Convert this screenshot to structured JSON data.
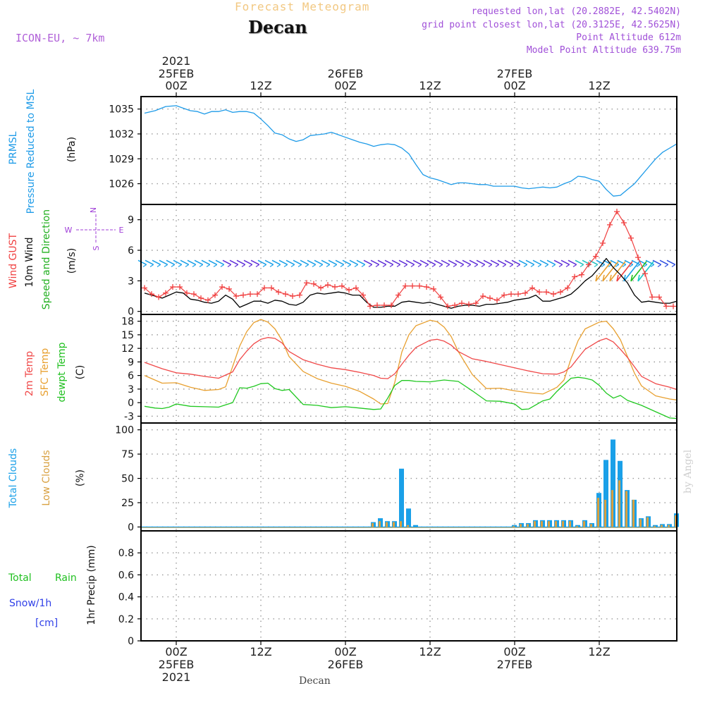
{
  "header": {
    "product": "Forecast Meteogram",
    "location": "Decan",
    "model": "ICON-EU, ~ 7km",
    "requested": "requested lon,lat (20.2882E, 42.5402N)",
    "grid_point": "grid point closest lon,lat (20.3125E, 42.5625N)",
    "point_altitude": "Point Altitude 612m",
    "model_altitude": "Model Point Altitude 639.75m",
    "footer_location": "Decan",
    "credit": "by Angel"
  },
  "time_axis": {
    "year": "2021",
    "ticks": [
      {
        "hour": 0,
        "label": "00Z",
        "date": "25FEB",
        "year": "2021"
      },
      {
        "hour": 12,
        "label": "12Z"
      },
      {
        "hour": 24,
        "label": "00Z",
        "date": "26FEB"
      },
      {
        "hour": 36,
        "label": "12Z"
      },
      {
        "hour": 48,
        "label": "00Z",
        "date": "27FEB"
      },
      {
        "hour": 60,
        "label": "12Z"
      }
    ],
    "range_hours": [
      -5,
      71
    ]
  },
  "colors": {
    "pressure": "#1E9BE8",
    "gust": "#F04040",
    "wind": "#000000",
    "barb_green": "#22C020",
    "t2m": "#F04848",
    "sfc": "#E8A030",
    "dewpt": "#20C820",
    "total_clouds": "#1AA0E8",
    "low_clouds": "#D8A040",
    "rain": "#20C820",
    "snow": "#3040E8",
    "purple": "#A040D8",
    "grid": "#9a9a9a"
  },
  "panel_labels": {
    "p1": {
      "a": "PRMSL",
      "b": "Pressure Reduced to MSL",
      "unit": "(hPa)"
    },
    "p2": {
      "a": "Wind GUST",
      "b": "10m Wind",
      "c": "Speed and Direction",
      "unit": "(m/s)",
      "compass_n": "N",
      "compass_s": "S",
      "compass_w": "W",
      "compass_e": "E"
    },
    "p3": {
      "a": "2m Temp",
      "b": "SFC Temp",
      "c": "dewpt Temp",
      "unit": "(C)"
    },
    "p4": {
      "a": "Total Clouds",
      "b": "Low Clouds",
      "unit": "(%)"
    },
    "p5": {
      "a": "Total",
      "b": "Rain",
      "c": "Snow/1h",
      "d": "[cm]",
      "unit": "1hr Precip (mm)"
    }
  },
  "chart_data": [
    {
      "type": "line",
      "title": "PRMSL Pressure Reduced to MSL",
      "ylabel": "(hPa)",
      "ylim": [
        1023.5,
        1036.5
      ],
      "yticks": [
        1026,
        1029,
        1032,
        1035
      ],
      "series": [
        {
          "name": "PRMSL",
          "x": [
            -4.5,
            -3,
            -1.5,
            0,
            1,
            2,
            3,
            4,
            5,
            6,
            7,
            8,
            9,
            10,
            11,
            12,
            13,
            14,
            15,
            16,
            17,
            18,
            19,
            20,
            21,
            22,
            23,
            24,
            25,
            26,
            27,
            28,
            29,
            30,
            31,
            32,
            33,
            34,
            35,
            36,
            37,
            38,
            39,
            40,
            41,
            42,
            43,
            44,
            45,
            46,
            47,
            48,
            49,
            50,
            51,
            52,
            53,
            54,
            55,
            56,
            57,
            58,
            59,
            60,
            61,
            62,
            63,
            64,
            65,
            66,
            67,
            68,
            69,
            70,
            71
          ],
          "values": [
            1034.5,
            1034.8,
            1035.3,
            1035.4,
            1035.1,
            1034.8,
            1034.7,
            1034.4,
            1034.7,
            1034.7,
            1034.9,
            1034.6,
            1034.7,
            1034.7,
            1034.5,
            1033.8,
            1033.0,
            1032.1,
            1031.9,
            1031.4,
            1031.1,
            1031.3,
            1031.8,
            1031.9,
            1032.0,
            1032.2,
            1031.9,
            1031.6,
            1031.3,
            1031.0,
            1030.8,
            1030.5,
            1030.7,
            1030.8,
            1030.7,
            1030.3,
            1029.6,
            1028.3,
            1027.1,
            1026.7,
            1026.5,
            1026.2,
            1025.9,
            1026.1,
            1026.1,
            1026.0,
            1025.9,
            1025.9,
            1025.7,
            1025.7,
            1025.7,
            1025.7,
            1025.5,
            1025.4,
            1025.5,
            1025.6,
            1025.5,
            1025.6,
            1026.0,
            1026.3,
            1026.9,
            1026.8,
            1026.5,
            1026.3,
            1025.3,
            1024.5,
            1024.6,
            1025.3,
            1026.0,
            1027.0,
            1028.0,
            1029.0,
            1029.8,
            1030.3,
            1030.8
          ]
        }
      ]
    },
    {
      "type": "line",
      "title": "Wind GUST / 10m Wind Speed and Direction",
      "ylabel": "(m/s)",
      "ylim": [
        -0.3,
        10.5
      ],
      "yticks": [
        0,
        3,
        6,
        9
      ],
      "series": [
        {
          "name": "Wind GUST",
          "x": [
            -4.5,
            -3.5,
            -2.5,
            -1.5,
            -0.5,
            0.5,
            1.5,
            2.5,
            3.5,
            4.5,
            5.5,
            6.5,
            7.5,
            8.5,
            9.5,
            10.5,
            11.5,
            12.5,
            13.5,
            14.5,
            15.5,
            16.5,
            17.5,
            18.5,
            19.5,
            20.5,
            21.5,
            22.5,
            23.5,
            24.5,
            25.5,
            26.5,
            27.5,
            28.5,
            29.5,
            30.5,
            31.5,
            32.5,
            33.5,
            34.5,
            35.5,
            36.5,
            37.5,
            38.5,
            39.5,
            40.5,
            41.5,
            42.5,
            43.5,
            44.5,
            45.5,
            46.5,
            47.5,
            48.5,
            49.5,
            50.5,
            51.5,
            52.5,
            53.5,
            54.5,
            55.5,
            56.5,
            57.5,
            58.5,
            59.5,
            60.5,
            61.5,
            62.5,
            63.5,
            64.5,
            65.5,
            66.5,
            67.5,
            68.5,
            69.5,
            70.5
          ],
          "values": [
            2.3,
            1.7,
            1.4,
            1.8,
            2.4,
            2.4,
            1.8,
            1.7,
            1.3,
            1.1,
            1.6,
            2.4,
            2.2,
            1.5,
            1.6,
            1.7,
            1.7,
            2.3,
            2.3,
            1.9,
            1.7,
            1.5,
            1.6,
            2.8,
            2.7,
            2.3,
            2.6,
            2.4,
            2.5,
            2.1,
            2.3,
            1.6,
            0.5,
            0.6,
            0.6,
            0.6,
            1.6,
            2.5,
            2.5,
            2.5,
            2.4,
            2.2,
            1.4,
            0.5,
            0.6,
            0.8,
            0.7,
            0.8,
            1.5,
            1.3,
            1.1,
            1.6,
            1.7,
            1.7,
            1.8,
            2.3,
            1.9,
            1.9,
            1.7,
            1.9,
            2.3,
            3.4,
            3.6,
            4.6,
            5.4,
            6.7,
            8.5,
            9.8,
            8.7,
            7.2,
            5.3,
            3.7,
            1.4,
            1.4,
            0.5,
            0.5
          ]
        },
        {
          "name": "10m Wind",
          "x": [
            -4.5,
            -3,
            -2,
            -1,
            0,
            1,
            2,
            3,
            4,
            5,
            6,
            7,
            8,
            9,
            10,
            11,
            12,
            13,
            14,
            15,
            16,
            17,
            18,
            19,
            20,
            21,
            22,
            23,
            24,
            25,
            26,
            27,
            28,
            29,
            30,
            31,
            32,
            33,
            34,
            35,
            36,
            37,
            38,
            39,
            40,
            41,
            42,
            43,
            44,
            45,
            46,
            47,
            48,
            49,
            50,
            51,
            52,
            53,
            54,
            55,
            56,
            57,
            58,
            59,
            60,
            61,
            62,
            63,
            64,
            65,
            66,
            67,
            68,
            69,
            70,
            71
          ],
          "values": [
            1.8,
            1.5,
            1.3,
            1.6,
            1.9,
            1.8,
            1.2,
            1.1,
            0.9,
            0.8,
            1.0,
            1.6,
            1.2,
            0.4,
            0.7,
            1.0,
            1.0,
            0.8,
            1.1,
            1.0,
            0.7,
            0.6,
            0.9,
            1.6,
            1.8,
            1.7,
            1.8,
            1.9,
            1.8,
            1.6,
            1.6,
            0.9,
            0.4,
            0.4,
            0.5,
            0.5,
            0.9,
            1.0,
            0.9,
            0.8,
            0.9,
            0.7,
            0.5,
            0.3,
            0.5,
            0.6,
            0.6,
            0.5,
            0.7,
            0.7,
            0.8,
            0.9,
            1.1,
            1.2,
            1.3,
            1.6,
            1.0,
            1.0,
            1.2,
            1.4,
            1.7,
            2.3,
            3.0,
            3.5,
            4.3,
            5.2,
            4.3,
            3.6,
            2.8,
            1.6,
            0.9,
            1.0,
            0.9,
            0.8,
            0.8,
            1.0
          ]
        }
      ],
      "barb_level": 4.8
    },
    {
      "type": "line",
      "title": "2m Temp / SFC Temp / dewpt Temp",
      "ylabel": "(C)",
      "ylim": [
        -4.5,
        19.5
      ],
      "yticks": [
        -3,
        0,
        3,
        6,
        9,
        12,
        15,
        18
      ],
      "series": [
        {
          "name": "2m Temp",
          "x": [
            -4.5,
            -2,
            0,
            2,
            4,
            6,
            8,
            9,
            10,
            11,
            12,
            13,
            14,
            15,
            16,
            18,
            20,
            22,
            24,
            26,
            28,
            29,
            30,
            31,
            32,
            33,
            34,
            36,
            37,
            38,
            39,
            40,
            42,
            44,
            46,
            48,
            50,
            52,
            54,
            55,
            56,
            57,
            58,
            60,
            61,
            62,
            63,
            64,
            65,
            66,
            68,
            70,
            71
          ],
          "values": [
            8.9,
            7.5,
            6.6,
            6.3,
            5.8,
            5.4,
            6.8,
            9.5,
            11.4,
            13.0,
            14.0,
            14.4,
            14.2,
            13.2,
            11.3,
            9.5,
            8.5,
            7.7,
            7.3,
            6.7,
            6.0,
            5.4,
            5.3,
            6.4,
            8.5,
            10.5,
            12.2,
            13.8,
            14.0,
            13.6,
            12.7,
            11.3,
            9.7,
            9.1,
            8.4,
            7.7,
            7.0,
            6.4,
            6.3,
            6.8,
            7.9,
            9.9,
            11.8,
            13.7,
            14.2,
            13.4,
            11.8,
            10.0,
            7.9,
            5.8,
            4.2,
            3.4,
            2.9
          ]
        },
        {
          "name": "SFC Temp",
          "x": [
            -4.5,
            -2,
            0,
            2,
            4,
            6,
            7,
            8,
            9,
            10,
            11,
            12,
            13,
            14,
            15,
            16,
            18,
            20,
            22,
            24,
            26,
            28,
            29,
            30,
            31,
            32,
            33,
            34,
            36,
            37,
            38,
            39,
            40,
            42,
            44,
            46,
            48,
            50,
            52,
            54,
            55,
            56,
            57,
            58,
            60,
            61,
            62,
            63,
            64,
            65,
            66,
            68,
            70,
            71
          ],
          "values": [
            6.0,
            4.3,
            4.4,
            3.4,
            2.7,
            2.9,
            3.5,
            8.0,
            12.5,
            15.7,
            17.7,
            18.4,
            17.8,
            16.3,
            13.8,
            10.2,
            6.9,
            5.3,
            4.3,
            3.6,
            2.5,
            0.8,
            -0.3,
            -0.2,
            4.5,
            11.2,
            15.0,
            17.0,
            18.2,
            17.9,
            16.7,
            14.6,
            11.3,
            6.2,
            3.1,
            3.2,
            2.6,
            2.2,
            1.9,
            3.4,
            5.0,
            9.7,
            13.7,
            16.3,
            17.8,
            18.0,
            16.3,
            13.9,
            10.2,
            6.5,
            3.7,
            1.5,
            0.8,
            0.6
          ]
        },
        {
          "name": "dewpt Temp",
          "x": [
            -4.5,
            -3,
            -2,
            -1,
            0,
            2,
            4,
            6,
            7,
            8,
            9,
            10,
            11,
            12,
            13,
            14,
            15,
            16,
            18,
            20,
            22,
            24,
            26,
            28,
            29,
            30,
            31,
            32,
            33,
            34,
            36,
            38,
            40,
            42,
            44,
            46,
            48,
            49,
            50,
            51,
            52,
            53,
            54,
            55,
            56,
            57,
            58,
            59,
            60,
            61,
            62,
            63,
            64,
            66,
            68,
            70,
            71
          ],
          "values": [
            -0.8,
            -1.2,
            -1.3,
            -1.0,
            -0.3,
            -0.8,
            -0.9,
            -1.0,
            -0.5,
            0.0,
            3.3,
            3.2,
            3.6,
            4.2,
            4.3,
            3.1,
            2.7,
            2.9,
            -0.4,
            -0.6,
            -1.1,
            -0.9,
            -1.2,
            -1.5,
            -1.4,
            1.0,
            3.8,
            4.9,
            4.9,
            4.7,
            4.6,
            5.0,
            4.7,
            2.6,
            0.4,
            0.3,
            -0.3,
            -1.5,
            -1.4,
            -0.5,
            0.4,
            0.8,
            2.5,
            4.0,
            5.4,
            5.6,
            5.4,
            5.0,
            3.8,
            2.1,
            1.0,
            1.6,
            0.5,
            -0.6,
            -2.0,
            -3.4,
            -3.5
          ]
        }
      ]
    },
    {
      "type": "bar",
      "title": "Total Clouds / Low Clouds",
      "ylabel": "(%)",
      "ylim": [
        -4,
        107
      ],
      "yticks": [
        0,
        25,
        50,
        75,
        100
      ],
      "series": [
        {
          "name": "Total Clouds",
          "x": [
            28,
            29,
            30,
            31,
            32,
            33,
            34,
            35,
            48,
            49,
            50,
            51,
            52,
            53,
            54,
            55,
            56,
            57,
            58,
            59,
            60,
            61,
            62,
            63,
            64,
            65,
            66,
            67,
            68,
            69,
            70,
            71
          ],
          "values": [
            5,
            9,
            6,
            6,
            60,
            19,
            2,
            0,
            2,
            4,
            4,
            7,
            7,
            7,
            7,
            7,
            7,
            2,
            7,
            4,
            35,
            69,
            90,
            68,
            38,
            28,
            9,
            11,
            2,
            3,
            3,
            14
          ]
        },
        {
          "name": "Low Clouds",
          "x": [
            28,
            29,
            30,
            31,
            32,
            33,
            34,
            35,
            48,
            49,
            50,
            51,
            52,
            53,
            54,
            55,
            56,
            57,
            58,
            59,
            60,
            61,
            62,
            63,
            64,
            65,
            66,
            67,
            68,
            69,
            70,
            71
          ],
          "values": [
            4,
            6,
            5,
            5,
            6,
            2,
            0,
            0,
            1,
            3,
            3,
            6,
            6,
            6,
            6,
            6,
            6,
            1,
            6,
            3,
            30,
            28,
            38,
            48,
            37,
            28,
            8,
            10,
            1,
            2,
            2,
            12
          ]
        }
      ]
    },
    {
      "type": "bar",
      "title": "Total Rain Snow/1h",
      "ylabel": "1hr Precip (mm)",
      "ylim": [
        0,
        1.0
      ],
      "yticks": [
        0,
        0.2,
        0.4,
        0.6,
        0.8
      ],
      "tick_labels": [
        "0",
        "0.2",
        "0.4",
        "0.6",
        "0.8"
      ],
      "series": [
        {
          "name": "Total Rain",
          "x": [],
          "values": []
        },
        {
          "name": "Snow/1h",
          "x": [],
          "values": []
        }
      ]
    }
  ]
}
